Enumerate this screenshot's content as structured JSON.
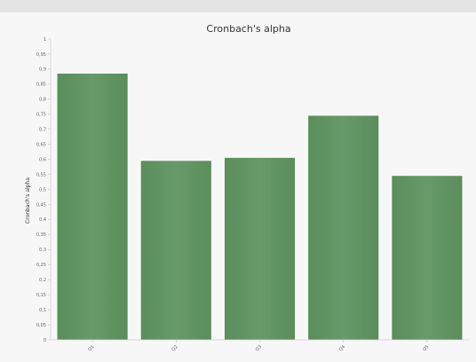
{
  "chart_data": {
    "type": "bar",
    "title": "Cronbach's alpha",
    "xlabel": "",
    "ylabel": "Cronbach's alpha",
    "ylim": [
      0,
      1
    ],
    "yticks": [
      "0",
      "0,05",
      "0,1",
      "0,15",
      "0,2",
      "0,25",
      "0,3",
      "0,35",
      "0,4",
      "0,45",
      "0,5",
      "0,55",
      "0,6",
      "0,65",
      "0,7",
      "0,75",
      "0,8",
      "0,85",
      "0,9",
      "0,95",
      "1"
    ],
    "categories": [
      "Q1",
      "Q2",
      "Q3",
      "Q4",
      "Q5"
    ],
    "values": [
      0.885,
      0.595,
      0.605,
      0.745,
      0.545
    ],
    "grid": false,
    "legend": "none",
    "bar_color": "#5e925e"
  }
}
